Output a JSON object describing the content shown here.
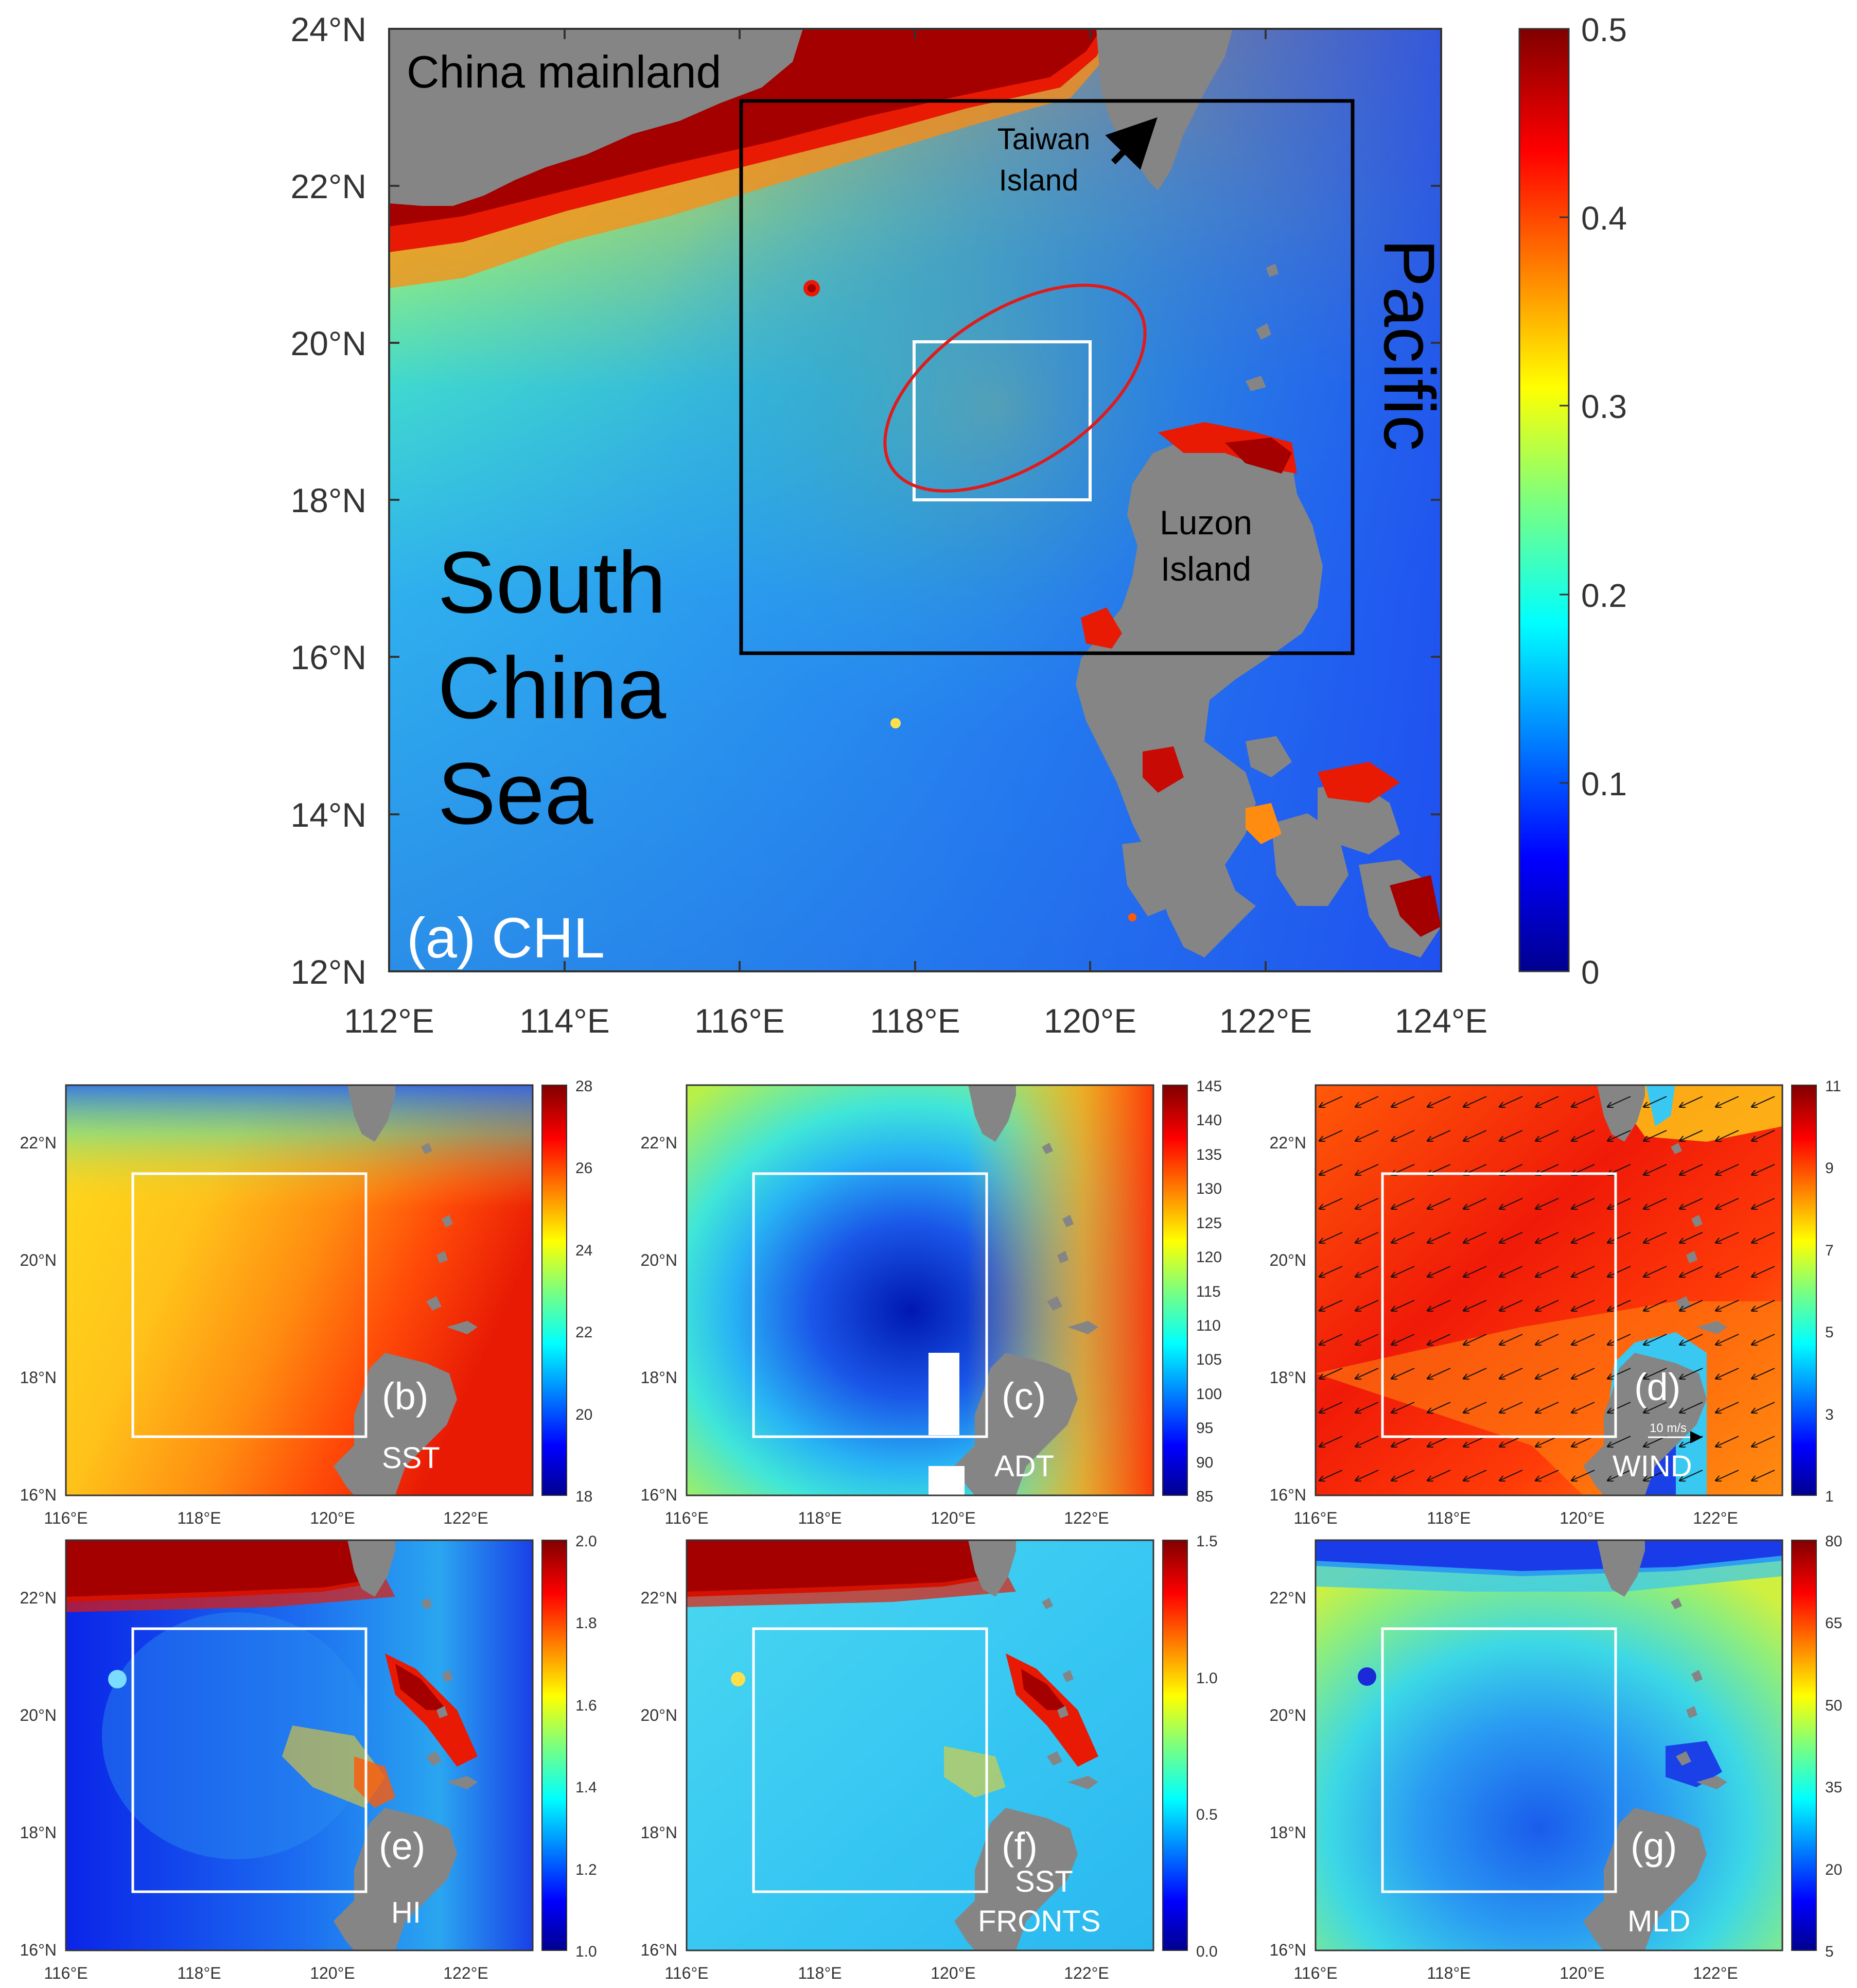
{
  "main_map": {
    "panel_label": "(a) CHL",
    "places": {
      "china_mainland": "China mainland",
      "taiwan_line1": "Taiwan",
      "taiwan_line2": "Island",
      "luzon_line1": "Luzon",
      "luzon_line2": "Island",
      "pacific": "Pacific",
      "scs_line1": "South",
      "scs_line2": "China",
      "scs_line3": "Sea"
    },
    "lat_ticks": [
      "24°N",
      "22°N",
      "20°N",
      "18°N",
      "16°N",
      "14°N",
      "12°N"
    ],
    "lon_ticks": [
      "112°E",
      "114°E",
      "116°E",
      "118°E",
      "120°E",
      "122°E",
      "124°E"
    ],
    "colorbar_ticks": [
      "0.5",
      "0.4",
      "0.3",
      "0.2",
      "0.1",
      "0"
    ],
    "extent": {
      "lon": [
        112,
        124
      ],
      "lat": [
        12,
        24
      ]
    },
    "black_box": {
      "lon": [
        116,
        123
      ],
      "lat": [
        16,
        23
      ]
    },
    "white_box": {
      "lon": [
        118,
        120
      ],
      "lat": [
        18,
        20
      ]
    },
    "colormap": "jet"
  },
  "small_panels": {
    "lat_ticks": [
      "22°N",
      "20°N",
      "18°N",
      "16°N"
    ],
    "lon_ticks": [
      "116°E",
      "118°E",
      "120°E",
      "122°E"
    ],
    "extent": {
      "lon": [
        116,
        123
      ],
      "lat": [
        16,
        23
      ]
    },
    "white_box": {
      "lon": [
        117,
        120.5
      ],
      "lat": [
        17,
        21.5
      ]
    },
    "items": [
      {
        "id": "b",
        "label": "(b)",
        "name_line1": "SST",
        "name_line2": "",
        "cbar_ticks": [
          "28",
          "26",
          "24",
          "22",
          "20",
          "18"
        ]
      },
      {
        "id": "c",
        "label": "(c)",
        "name_line1": "ADT",
        "name_line2": "",
        "cbar_ticks": [
          "145",
          "140",
          "135",
          "130",
          "125",
          "120",
          "115",
          "110",
          "105",
          "100",
          "95",
          "90",
          "85"
        ]
      },
      {
        "id": "d",
        "label": "(d)",
        "name_line1": "WIND",
        "name_line2": "",
        "cbar_ticks": [
          "11",
          "9",
          "7",
          "5",
          "3",
          "1"
        ],
        "wind_scale": "10 m/s"
      },
      {
        "id": "e",
        "label": "(e)",
        "name_line1": "HI",
        "name_line2": "",
        "cbar_ticks": [
          "2.0",
          "1.8",
          "1.6",
          "1.4",
          "1.2",
          "1.0"
        ]
      },
      {
        "id": "f",
        "label": "(f)",
        "name_line1": "SST",
        "name_line2": "FRONTS",
        "cbar_ticks": [
          "1.5",
          "1.0",
          "0.5",
          "0.0"
        ]
      },
      {
        "id": "g",
        "label": "(g)",
        "name_line1": "MLD",
        "name_line2": "",
        "cbar_ticks": [
          "80",
          "65",
          "50",
          "35",
          "20",
          "5"
        ]
      }
    ]
  },
  "colors": {
    "land": "#858585",
    "chl_high": "#a50000",
    "ocean_mid": "#27c8f2",
    "ocean_low": "#1e78e6",
    "box_black": "#000000",
    "box_white": "#ffffff",
    "ellipse_red": "#e11a1a"
  }
}
